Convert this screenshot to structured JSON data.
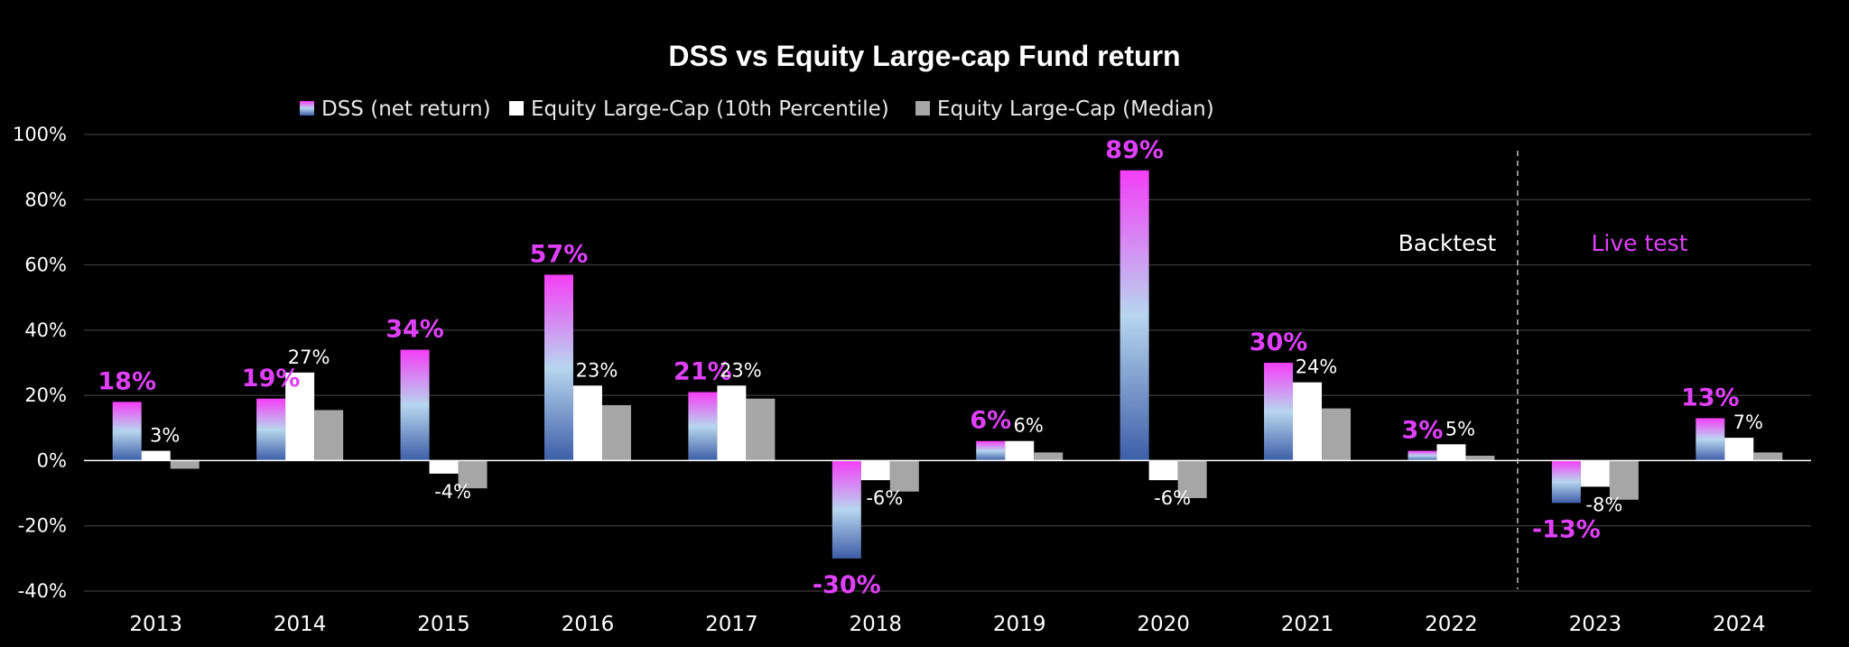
{
  "chart_data": {
    "type": "bar",
    "title": "DSS vs Equity Large-cap Fund return",
    "categories": [
      "2013",
      "2014",
      "2015",
      "2016",
      "2017",
      "2018",
      "2019",
      "2020",
      "2021",
      "2022",
      "2023",
      "2024"
    ],
    "series": [
      {
        "name": "DSS (net return)",
        "values": [
          18,
          19,
          34,
          57,
          21,
          -30,
          6,
          89,
          30,
          3,
          -13,
          13
        ],
        "labels": [
          "18%",
          "19%",
          "34%",
          "57%",
          "21%",
          "-30%",
          "6%",
          "89%",
          "30%",
          "3%",
          "-13%",
          "13%"
        ]
      },
      {
        "name": "Equity Large-Cap (10th Percentile)",
        "values": [
          3,
          27,
          -4,
          23,
          23,
          -6,
          6,
          -6,
          24,
          5,
          -8,
          7
        ],
        "labels": [
          "3%",
          "27%",
          "-4%",
          "23%",
          "23%",
          "-6%",
          "6%",
          "-6%",
          "24%",
          "5%",
          "-8%",
          "7%"
        ]
      },
      {
        "name": "Equity Large-Cap (Median)",
        "values": [
          -2.5,
          15.5,
          -8.5,
          17,
          19,
          -9.5,
          2.5,
          -11.5,
          16,
          1.5,
          -12,
          2.5
        ],
        "labels": []
      }
    ],
    "ylim": [
      -40,
      100
    ],
    "yticks": [
      -40,
      -20,
      0,
      20,
      40,
      60,
      80,
      100
    ],
    "ytick_labels": [
      "-40%",
      "-20%",
      "0%",
      "20%",
      "40%",
      "60%",
      "80%",
      "100%"
    ],
    "grid": true,
    "legend_position": "top",
    "annotations": {
      "backtest": "Backtest",
      "live_test": "Live test"
    },
    "colors": {
      "dss_top": "#f43ef7",
      "dss_mid": "#b7d6ee",
      "dss_bottom": "#3d5da8",
      "p10": "#ffffff",
      "median": "#a6a6a6",
      "label_dss": "#e040fb",
      "grid": "#3a3a3a",
      "background": "#000000"
    }
  }
}
